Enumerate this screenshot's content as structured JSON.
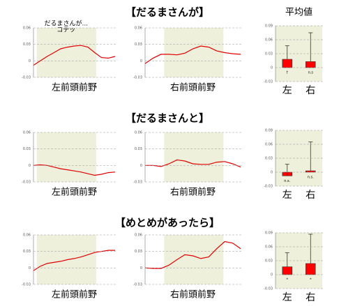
{
  "headings": [
    "【だるまさんが】",
    "【だるまさんと】",
    "【めとめがあったら】"
  ],
  "chart_data": [
    {
      "type": "line",
      "xlabel": "左前頭前野",
      "annotation": [
        "だるまさんが...",
        "コテッ"
      ],
      "color": "#e00000",
      "ylim": [
        -0.03,
        0.06
      ],
      "yticks": [
        -0.03,
        0,
        0.03,
        0.06
      ],
      "values": [
        -0.008,
        0.0,
        0.008,
        0.015,
        0.022,
        0.025,
        0.027,
        0.028,
        0.025,
        0.015,
        0.006,
        0.005,
        0.008
      ]
    },
    {
      "type": "line",
      "xlabel": "右前頭前野",
      "color": "#e00000",
      "ylim": [
        -0.03,
        0.06
      ],
      "yticks": [
        -0.03,
        0,
        0.03,
        0.06
      ],
      "values": [
        -0.005,
        0.005,
        0.012,
        0.012,
        0.011,
        0.014,
        0.022,
        0.027,
        0.025,
        0.018,
        0.015,
        0.013,
        0.012
      ]
    },
    {
      "type": "bar",
      "title": "平均値",
      "categories": [
        "左",
        "右"
      ],
      "color": "#ff0000",
      "ylim": [
        -0.03,
        0.09
      ],
      "yticks": [
        -0.03,
        0,
        0.03,
        0.06,
        0.09
      ],
      "values": [
        0.018,
        0.013
      ],
      "errors": [
        0.029,
        0.062
      ],
      "significance": [
        "†",
        "n.s"
      ]
    },
    {
      "type": "line",
      "xlabel": "左前頭前野",
      "color": "#e00000",
      "ylim": [
        -0.03,
        0.06
      ],
      "yticks": [
        -0.03,
        0,
        0.03,
        0.06
      ],
      "values": [
        0,
        0.001,
        0,
        -0.003,
        -0.006,
        -0.008,
        -0.01,
        -0.012,
        -0.015,
        -0.018,
        -0.016,
        -0.013,
        -0.012
      ]
    },
    {
      "type": "line",
      "xlabel": "右前頭前野",
      "color": "#e00000",
      "ylim": [
        -0.03,
        0.06
      ],
      "yticks": [
        -0.03,
        0,
        0.03,
        0.06
      ],
      "values": [
        0,
        0,
        -0.002,
        0.003,
        0.01,
        0.008,
        0.003,
        0.002,
        0.002,
        0.006,
        0.007,
        0.003,
        -0.003
      ]
    },
    {
      "type": "bar",
      "categories": [
        "左",
        "右"
      ],
      "color": "#ff0000",
      "ylim": [
        -0.03,
        0.09
      ],
      "yticks": [
        -0.03,
        0,
        0.03,
        0.06,
        0.09
      ],
      "values": [
        -0.008,
        0.003
      ],
      "errors": [
        0.025,
        0.062
      ],
      "significance": [
        "n.s.",
        "n.s."
      ]
    },
    {
      "type": "line",
      "xlabel": "左前頭前野",
      "color": "#e00000",
      "ylim": [
        -0.03,
        0.06
      ],
      "yticks": [
        -0.03,
        0,
        0.03,
        0.06
      ],
      "values": [
        -0.005,
        0.003,
        0.008,
        0.01,
        0.012,
        0.015,
        0.017,
        0.02,
        0.024,
        0.028,
        0.03,
        0.032,
        0.032
      ]
    },
    {
      "type": "line",
      "xlabel": "右前頭前野",
      "color": "#e00000",
      "ylim": [
        -0.03,
        0.06
      ],
      "yticks": [
        -0.03,
        0,
        0.03,
        0.06
      ],
      "values": [
        0,
        -0.001,
        -0.001,
        0.005,
        0.015,
        0.024,
        0.022,
        0.017,
        0.02,
        0.035,
        0.048,
        0.045,
        0.035
      ]
    },
    {
      "type": "bar",
      "categories": [
        "左",
        "右"
      ],
      "color": "#ff0000",
      "ylim": [
        -0.03,
        0.09
      ],
      "yticks": [
        -0.03,
        0,
        0.03,
        0.06,
        0.09
      ],
      "values": [
        0.017,
        0.024
      ],
      "errors": [
        0.03,
        0.063
      ],
      "significance": [
        "*",
        "*"
      ]
    }
  ]
}
